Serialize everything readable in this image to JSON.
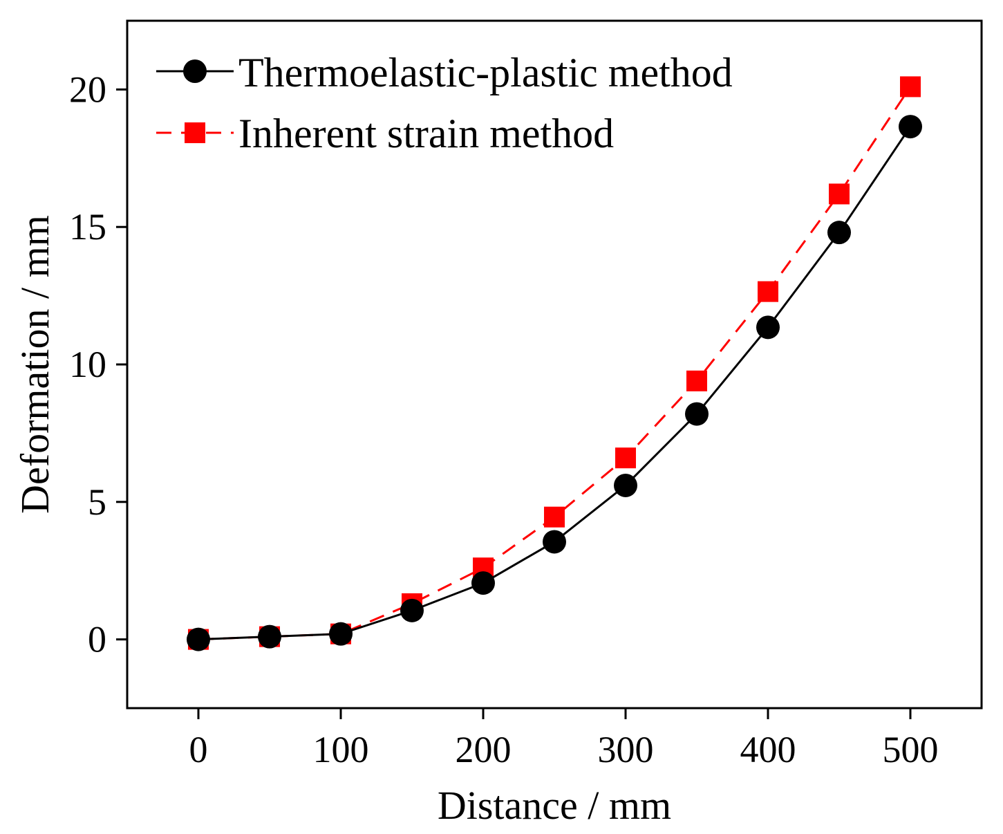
{
  "chart_data": {
    "type": "line",
    "title": "",
    "xlabel": "Distance / mm",
    "ylabel": "Deformation / mm",
    "xlim": [
      -50,
      550
    ],
    "ylim": [
      -2.5,
      22.5
    ],
    "xticks": [
      0,
      100,
      200,
      300,
      400,
      500
    ],
    "yticks": [
      0,
      5,
      10,
      15,
      20
    ],
    "x": [
      0,
      50,
      100,
      150,
      200,
      250,
      300,
      350,
      400,
      450,
      500
    ],
    "legend_position": "top-left",
    "grid": false,
    "series": [
      {
        "name": "Thermoelastic-plastic method",
        "color": "#000000",
        "marker": "circle",
        "linestyle": "solid",
        "values": [
          0,
          0.1,
          0.2,
          1.05,
          2.05,
          3.55,
          5.6,
          8.2,
          11.35,
          14.8,
          18.65
        ]
      },
      {
        "name": "Inherent strain method",
        "color": "#ff0000",
        "marker": "square",
        "linestyle": "dashed",
        "values": [
          0,
          0.1,
          0.2,
          1.3,
          2.6,
          4.45,
          6.6,
          9.4,
          12.65,
          16.2,
          20.1
        ]
      }
    ]
  }
}
